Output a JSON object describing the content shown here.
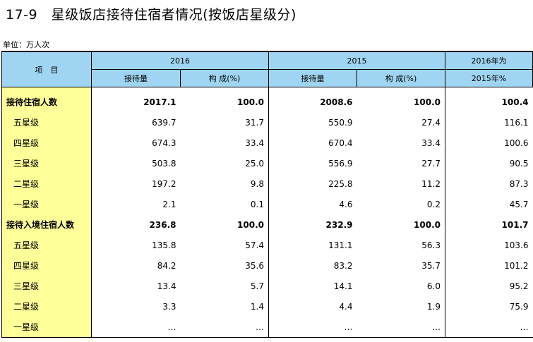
{
  "title": "17-9　星级饭店接待住宿者情况(按饭店星级分)",
  "unit": "单位：万人次",
  "headers": {
    "item": "项　目",
    "year1": "2016",
    "year2": "2015",
    "ratio_top": "2016年为",
    "ratio_bottom": "2015年%",
    "sub1": "接待量",
    "sub2": "构 成(%)",
    "sub3": "接待量",
    "sub4": "构 成(%)"
  },
  "rows": [
    {
      "label": "接待住宿人数",
      "v": [
        "2017.1",
        "100.0",
        "2008.6",
        "100.0",
        "100.4"
      ],
      "bold": true
    },
    {
      "label": "五星级",
      "v": [
        "639.7",
        "31.7",
        "550.9",
        "27.4",
        "116.1"
      ],
      "bold": false
    },
    {
      "label": "四星级",
      "v": [
        "674.3",
        "33.4",
        "670.4",
        "33.4",
        "100.6"
      ],
      "bold": false
    },
    {
      "label": "三星级",
      "v": [
        "503.8",
        "25.0",
        "556.9",
        "27.7",
        "90.5"
      ],
      "bold": false
    },
    {
      "label": "二星级",
      "v": [
        "197.2",
        "9.8",
        "225.8",
        "11.2",
        "87.3"
      ],
      "bold": false
    },
    {
      "label": "一星级",
      "v": [
        "2.1",
        "0.1",
        "4.6",
        "0.2",
        "45.7"
      ],
      "bold": false
    },
    {
      "label": "接待入境住宿人数",
      "v": [
        "236.8",
        "100.0",
        "232.9",
        "100.0",
        "101.7"
      ],
      "bold": true
    },
    {
      "label": "五星级",
      "v": [
        "135.8",
        "57.4",
        "131.1",
        "56.3",
        "103.6"
      ],
      "bold": false
    },
    {
      "label": "四星级",
      "v": [
        "84.2",
        "35.6",
        "83.2",
        "35.7",
        "101.2"
      ],
      "bold": false
    },
    {
      "label": "三星级",
      "v": [
        "13.4",
        "5.7",
        "14.1",
        "6.0",
        "95.2"
      ],
      "bold": false
    },
    {
      "label": "二星级",
      "v": [
        "3.3",
        "1.4",
        "4.4",
        "1.9",
        "75.9"
      ],
      "bold": false
    },
    {
      "label": "一星级",
      "v": [
        "…",
        "…",
        "…",
        "…",
        "…"
      ],
      "bold": false
    }
  ]
}
